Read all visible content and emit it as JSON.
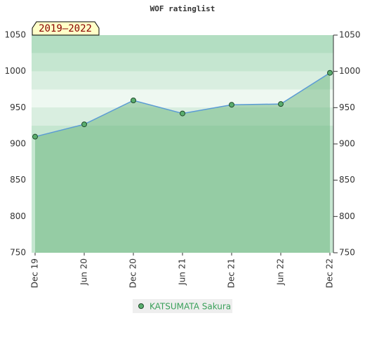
{
  "chart_data": {
    "type": "line",
    "title": "WOF ratinglist",
    "annotation": "2019–2022",
    "categories": [
      "Dec 19",
      "Jun 20",
      "Dec 20",
      "Jun 21",
      "Dec 21",
      "Jun 22",
      "Dec 22"
    ],
    "series": [
      {
        "name": "KATSUMATA Sakura",
        "color": "#5aae6e",
        "line_color": "#5b9bd5",
        "values": [
          910,
          927,
          960,
          942,
          954,
          955,
          998
        ]
      }
    ],
    "ylim": [
      750,
      1050
    ],
    "yticks": [
      750,
      800,
      850,
      900,
      950,
      1000,
      1050
    ],
    "y2ticks": [
      750,
      800,
      850,
      900,
      950,
      1000,
      1050
    ]
  }
}
